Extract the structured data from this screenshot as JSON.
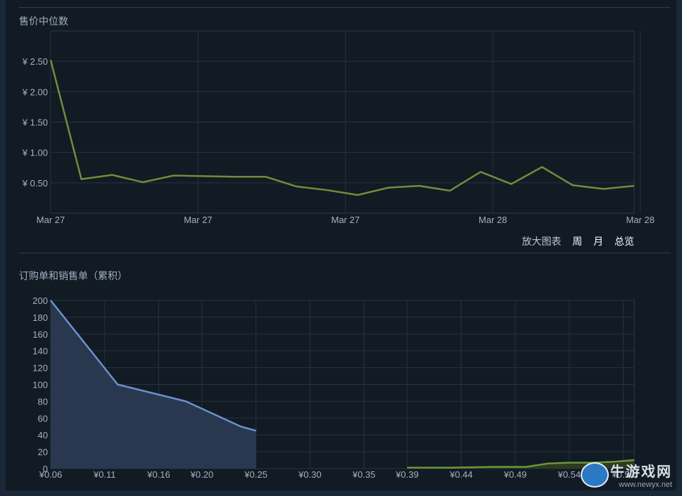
{
  "sections": {
    "median_title": "售价中位数",
    "orders_title": "订购单和销售单（累积）"
  },
  "zoom": {
    "label": "放大图表",
    "week": "周",
    "month": "月",
    "overview": "总览"
  },
  "watermark": {
    "name": "牛游戏网",
    "url": "www.newyx.net"
  },
  "colors": {
    "price_line": "#6d8f3a",
    "buy_line": "#6a91c9",
    "buy_fill": "#2b3a52",
    "sell_line": "#6d9638",
    "grid": "#243444",
    "background": "#121a24"
  },
  "chart_data": [
    {
      "type": "line",
      "title": "售价中位数",
      "ylim": [
        0,
        3.0
      ],
      "y_ticks": [
        "¥ 0.50",
        "¥ 1.00",
        "¥ 1.50",
        "¥ 2.00",
        "¥ 2.50"
      ],
      "y_tick_values": [
        0.5,
        1.0,
        1.5,
        2.0,
        2.5
      ],
      "x_ticks": [
        "Mar 27",
        "Mar 27",
        "Mar 27",
        "Mar 28",
        "Mar 28"
      ],
      "x_tick_positions": [
        0,
        4.8,
        9.6,
        14.4,
        19.2
      ],
      "grid": true,
      "series": [
        {
          "values": [
            2.52,
            0.56,
            0.63,
            0.51,
            0.62,
            0.61,
            0.6,
            0.6,
            0.44,
            0.38,
            0.3,
            0.42,
            0.45,
            0.37,
            0.68,
            0.48,
            0.76,
            0.46,
            0.4,
            0.45
          ]
        }
      ]
    },
    {
      "type": "area",
      "title": "订购单和销售单（累积）",
      "xlim": [
        0.06,
        0.6
      ],
      "ylim": [
        0,
        200
      ],
      "x_ticks": [
        "¥0.06",
        "¥0.11",
        "¥0.16",
        "¥0.20",
        "¥0.25",
        "¥0.30",
        "¥0.35",
        "¥0.39",
        "¥0.44",
        "¥0.49",
        "¥0.54",
        "¥0.59"
      ],
      "x_tick_values": [
        0.06,
        0.11,
        0.16,
        0.2,
        0.25,
        0.3,
        0.35,
        0.39,
        0.44,
        0.49,
        0.54,
        0.59
      ],
      "y_ticks": [
        "0",
        "20",
        "40",
        "60",
        "80",
        "100",
        "120",
        "140",
        "160",
        "180",
        "200"
      ],
      "y_tick_values": [
        0,
        20,
        40,
        60,
        80,
        100,
        120,
        140,
        160,
        180,
        200
      ],
      "grid": true,
      "series": [
        {
          "kind": "buy",
          "x": [
            0.06,
            0.122,
            0.185,
            0.236,
            0.25
          ],
          "y": [
            200,
            100,
            80,
            50,
            45
          ]
        },
        {
          "kind": "sell",
          "x": [
            0.39,
            0.43,
            0.47,
            0.5,
            0.52,
            0.54,
            0.56,
            0.58,
            0.6
          ],
          "y": [
            1,
            1,
            2,
            2,
            6,
            7,
            7,
            8,
            10
          ]
        }
      ]
    }
  ]
}
